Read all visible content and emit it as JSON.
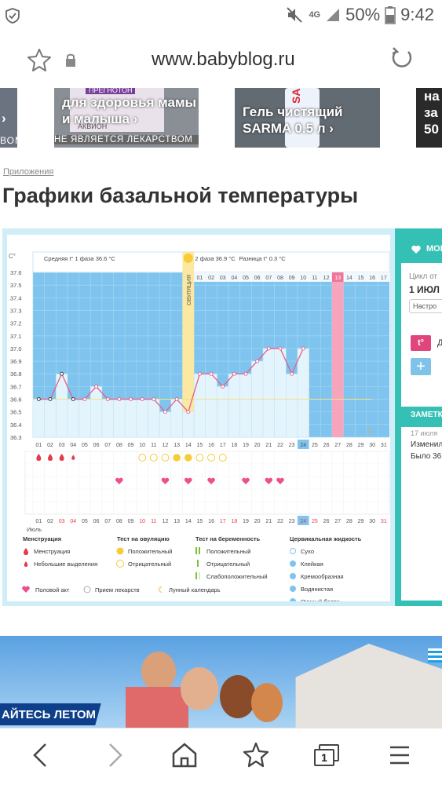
{
  "status": {
    "network": "4G",
    "battery": "50%",
    "time": "9:42"
  },
  "browser": {
    "url": "www.babyblog.ru",
    "tab_count": "1"
  },
  "ads": [
    {
      "text": "›",
      "sub": "ВОМ"
    },
    {
      "text": "для здоровья мамы и малыша ›",
      "sub": "НЕ ЯВЛЯЕТСЯ ЛЕКАРСТВОМ",
      "brand_small": "ПРЕГНОТОН",
      "brand2": "АКВИОН"
    },
    {
      "text": "Гель чистящий SARMA 0.5 л ›",
      "product": "SARMA"
    },
    {
      "text": "на за 50"
    }
  ],
  "breadcrumb": "Приложения",
  "title": "Графики базальной температуры",
  "chart_data": {
    "type": "line",
    "y_unit": "C°",
    "y_ticks": [
      "37.6",
      "37.5",
      "37.4",
      "37.3",
      "37.2",
      "37.1",
      "37.0",
      "36.9",
      "36.8",
      "36.7",
      "36.6",
      "36.5",
      "36.4",
      "36.3"
    ],
    "ylim": [
      36.3,
      37.6
    ],
    "phase1_label": "Средняя t° 1 фаза 36.6 °C",
    "phase2_label": "2 фаза 36.9 °C",
    "diff_label": "Разница t° 0.3 °C",
    "ovulation_label": "ОВУЛЯЦИЯ",
    "ovulation_day": 14,
    "cycle_days": [
      "01",
      "02",
      "03",
      "04",
      "05",
      "06",
      "07",
      "08",
      "09",
      "10",
      "11",
      "12",
      "13",
      "14",
      "15",
      "16",
      "17",
      "18",
      "19",
      "20",
      "21",
      "22",
      "23",
      "24",
      "25",
      "26",
      "27",
      "28",
      "29",
      "30",
      "31"
    ],
    "phase2_day_labels": [
      "01",
      "02",
      "03",
      "04",
      "05",
      "06",
      "07",
      "08",
      "09",
      "10",
      "11",
      "12",
      "13",
      "14",
      "15",
      "16",
      "17"
    ],
    "temperatures": [
      36.6,
      36.6,
      36.8,
      36.6,
      36.6,
      36.7,
      36.6,
      36.6,
      36.6,
      36.6,
      36.6,
      36.5,
      36.6,
      36.5,
      36.8,
      36.8,
      36.7,
      36.8,
      36.8,
      36.9,
      37.0,
      37.0,
      36.8,
      37.0
    ],
    "today_day": 24,
    "pink_day": 27,
    "moon_day": 30,
    "month": "Июль",
    "calendar_dates": [
      "01",
      "02",
      "03",
      "04",
      "05",
      "06",
      "07",
      "08",
      "09",
      "10",
      "11",
      "12",
      "13",
      "14",
      "15",
      "16",
      "17",
      "18",
      "19",
      "20",
      "21",
      "22",
      "23",
      "24",
      "25",
      "26",
      "27",
      "28",
      "29",
      "30",
      "31"
    ],
    "red_dates": [
      "03",
      "04",
      "10",
      "11",
      "17",
      "18",
      "24",
      "25",
      "31"
    ],
    "menstruation_days": [
      1,
      2,
      3,
      4
    ],
    "menstruation_light_day": 4,
    "ovulation_test_negative": [
      10,
      11,
      12,
      15,
      16,
      17
    ],
    "ovulation_test_positive": [
      13,
      14
    ],
    "intercourse_days": [
      8,
      12,
      14,
      16,
      19,
      21,
      22
    ]
  },
  "legend": {
    "menstruation_title": "Менструация",
    "menstruation": "Менструация",
    "light": "Небольшие выделения",
    "ovulation_title": "Тест на овуляцию",
    "positive": "Положительный",
    "negative": "Отрицательный",
    "pregnancy_title": "Тест на беременность",
    "preg_positive": "Положительный",
    "preg_negative": "Отрицательный",
    "preg_weak": "Слабоположительный",
    "cervical_title": "Цервикальная жидкость",
    "dry": "Сухо",
    "sticky": "Клейкая",
    "creamy": "Кремообразная",
    "watery": "Водянистая",
    "egg_white": "Яичный белок",
    "intercourse": "Половой акт",
    "medication": "Прием лекарств",
    "lunar": "Лунный календарь"
  },
  "sidebar": {
    "my": "МОИ",
    "cycle_from": "Цикл от",
    "cycle_date": "1 ИЮЛ",
    "settings": "Настро",
    "t_label": "Д",
    "notes_title": "ЗАМЕТК",
    "note_date": "17 июля",
    "note_line1": "Изменил",
    "note_line2": "Было 36."
  },
  "bottom_ad": {
    "text": "АЙТЕСЬ ЛЕТОМ"
  }
}
